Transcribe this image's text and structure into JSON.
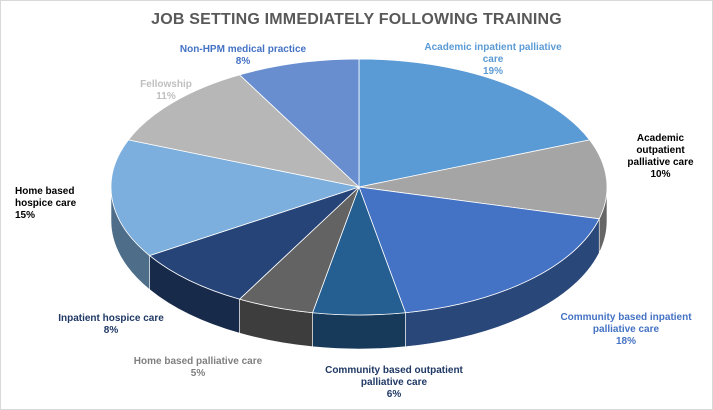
{
  "chart_data": {
    "type": "pie",
    "title": "JOB SETTING IMMEDIATELY FOLLOWING TRAINING",
    "slices": [
      {
        "label": "Academic inpatient palliative care",
        "value": 19,
        "value_label": "19%",
        "color": "#5b9bd5"
      },
      {
        "label": "Academic outpatient palliative care",
        "value": 10,
        "value_label": "10%",
        "color": "#a5a5a5"
      },
      {
        "label": "Community based inpatient palliative care",
        "value": 18,
        "value_label": "18%",
        "color": "#4472c4"
      },
      {
        "label": "Community based outpatient palliative care",
        "value": 6,
        "value_label": "6%",
        "color": "#255e91"
      },
      {
        "label": "Home based palliative care",
        "value": 5,
        "value_label": "5%",
        "color": "#636363"
      },
      {
        "label": "Inpatient hospice care",
        "value": 8,
        "value_label": "8%",
        "color": "#264478"
      },
      {
        "label": "Home based hospice care",
        "value": 15,
        "value_label": "15%",
        "color": "#7cafdd"
      },
      {
        "label": "Fellowship",
        "value": 11,
        "value_label": "11%",
        "color": "#b7b7b7"
      },
      {
        "label": "Non-HPM medical practice",
        "value": 8,
        "value_label": "8%",
        "color": "#698ed0"
      }
    ],
    "label_colors": [
      "#5b9bd5",
      "#000000",
      "#4472c4",
      "#1f3864",
      "#7f7f7f",
      "#1f3864",
      "#000000",
      "#bfbfbf",
      "#4472c4"
    ]
  }
}
